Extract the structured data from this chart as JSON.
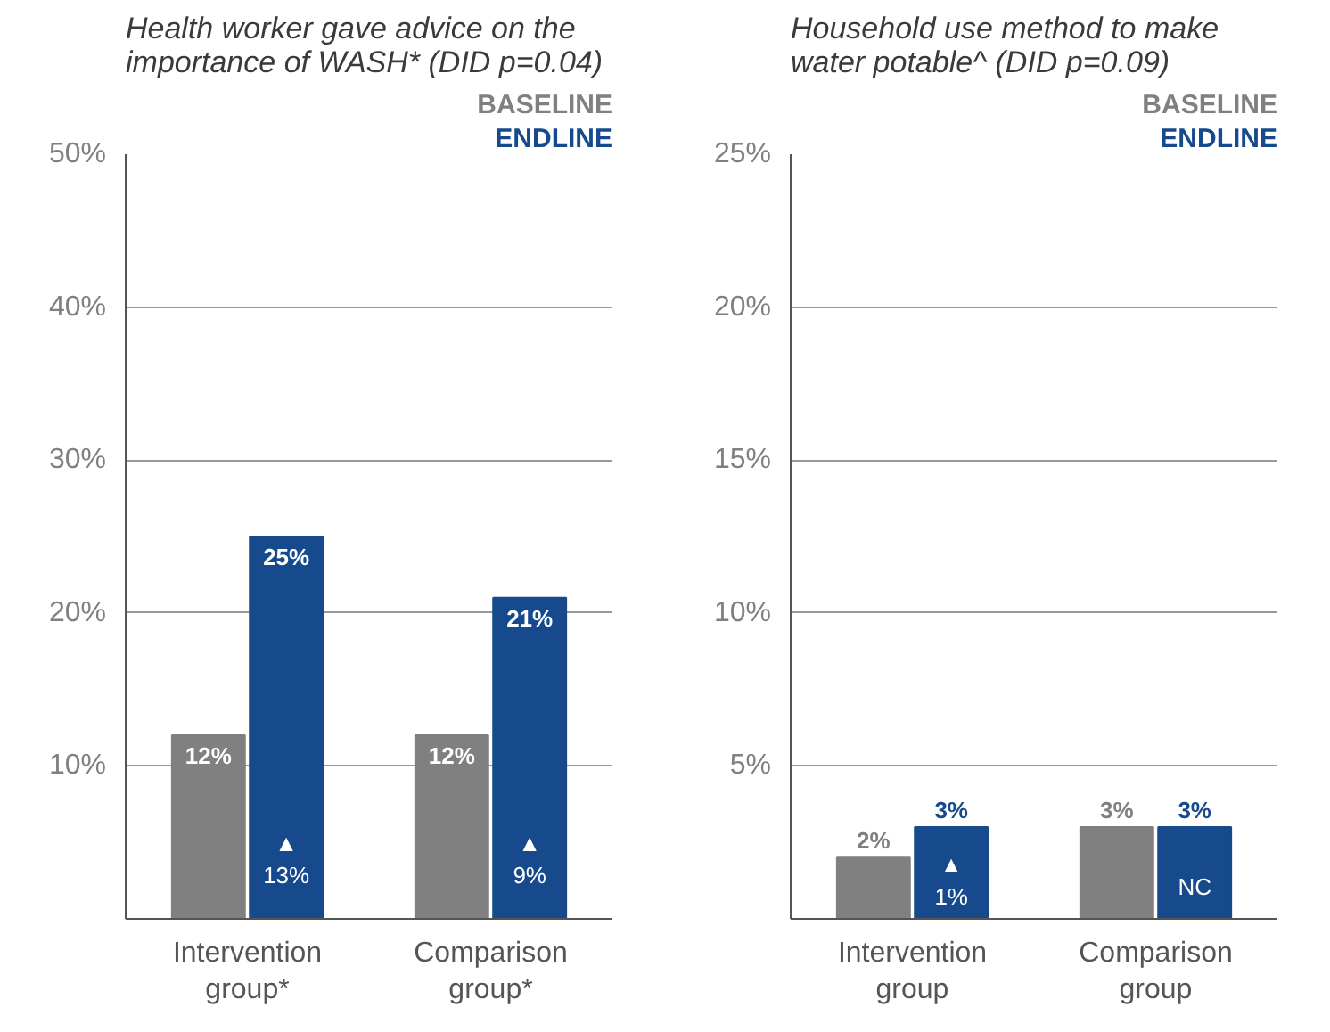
{
  "chart_data": [
    {
      "type": "bar",
      "title": "Health worker gave advice on the\nimportance of WASH* (DID p=0.04)",
      "categories": [
        "Intervention\ngroup*",
        "Comparison\ngroup*"
      ],
      "series": [
        {
          "name": "BASELINE",
          "color": "#808080",
          "values": [
            12,
            12
          ],
          "value_labels": [
            "12%",
            "12%"
          ]
        },
        {
          "name": "ENDLINE",
          "color": "#164a8c",
          "values": [
            25,
            21
          ],
          "value_labels": [
            "25%",
            "21%"
          ]
        }
      ],
      "ylim": [
        0,
        50
      ],
      "yticks": [
        {
          "value": 10,
          "label": "10%"
        },
        {
          "value": 20,
          "label": "20%"
        },
        {
          "value": 30,
          "label": "30%"
        },
        {
          "value": 40,
          "label": "40%"
        },
        {
          "value": 50,
          "label": "50%"
        }
      ],
      "grid": "y",
      "annotations": [
        {
          "text": "▲\n13%",
          "x": "Intervention\ngroup*",
          "y": 2
        },
        {
          "text": "▲\n9%",
          "x": "Comparison\ngroup*",
          "y": 2
        }
      ]
    },
    {
      "type": "bar",
      "title": "Household use method to make\nwater potable^ (DID p=0.09)",
      "categories": [
        "Intervention\ngroup",
        "Comparison\ngroup"
      ],
      "series": [
        {
          "name": "BASELINE",
          "color": "#808080",
          "values": [
            2,
            3
          ],
          "value_labels": [
            "2%",
            "3%"
          ]
        },
        {
          "name": "ENDLINE",
          "color": "#164a8c",
          "values": [
            3,
            3
          ],
          "value_labels": [
            "3%",
            "3%"
          ]
        }
      ],
      "ylim": [
        0,
        25
      ],
      "yticks": [
        {
          "value": 5,
          "label": "5%"
        },
        {
          "value": 10,
          "label": "10%"
        },
        {
          "value": 15,
          "label": "15%"
        },
        {
          "value": 20,
          "label": "20%"
        },
        {
          "value": 25,
          "label": "25%"
        }
      ],
      "grid": "y",
      "annotations": [
        {
          "text": "▲\n1%",
          "x": "Intervention\ngroup",
          "y": 0.3
        },
        {
          "text": "NC",
          "x": "Comparison\ngroup",
          "y": 0.6
        }
      ]
    }
  ]
}
